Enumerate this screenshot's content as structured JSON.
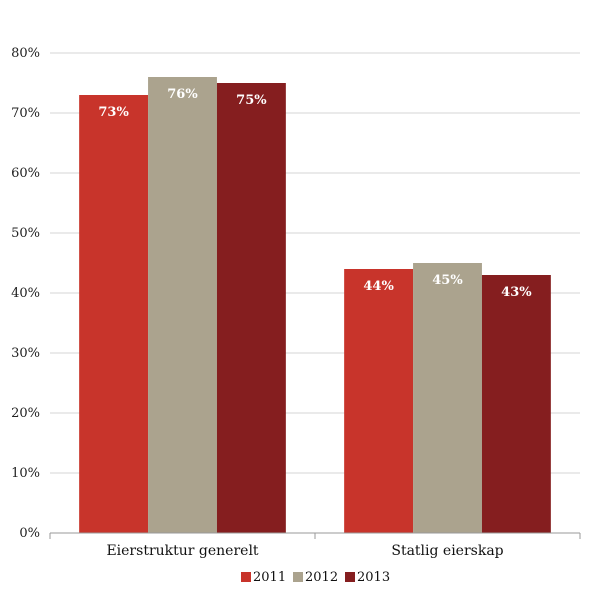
{
  "chart_data": {
    "type": "bar",
    "categories": [
      "Eierstruktur generelt",
      "Statlig eierskap"
    ],
    "series": [
      {
        "name": "2011",
        "values": [
          73,
          44
        ],
        "labels": [
          "73%",
          "44%"
        ],
        "color": "#c8342b"
      },
      {
        "name": "2012",
        "values": [
          76,
          45
        ],
        "labels": [
          "76%",
          "45%"
        ],
        "color": "#aba38e"
      },
      {
        "name": "2013",
        "values": [
          75,
          43
        ],
        "labels": [
          "75%",
          "43%"
        ],
        "color": "#851e1f"
      }
    ],
    "y_ticks": [
      "0%",
      "10%",
      "20%",
      "30%",
      "40%",
      "50%",
      "60%",
      "70%",
      "80%"
    ],
    "ylim": [
      0,
      80
    ],
    "grid": true,
    "legend_position": "bottom",
    "title": "",
    "xlabel": "",
    "ylabel": ""
  }
}
